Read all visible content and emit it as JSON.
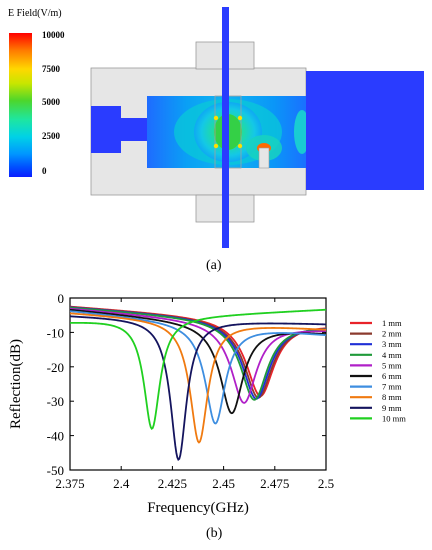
{
  "panel_a": {
    "label": "(a)",
    "colorbar": {
      "title": "E Field(V/m)",
      "ticks": [
        "10000",
        "7500",
        "5000",
        "2500",
        "0"
      ],
      "colors": [
        "#ff0000",
        "#ff7a00",
        "#ffd700",
        "#c8e600",
        "#4cd62c",
        "#1ee6a0",
        "#00d2e6",
        "#0096ff",
        "#0050ff",
        "#0a1eff"
      ]
    }
  },
  "panel_b": {
    "label": "(b)"
  },
  "chart_data": {
    "type": "line",
    "xlabel": "Frequency(GHz)",
    "ylabel": "Reflection(dB)",
    "xlim": [
      2.375,
      2.5
    ],
    "ylim": [
      -50,
      0
    ],
    "xticks": [
      "2.375",
      "2.4",
      "2.425",
      "2.45",
      "2.475",
      "2.5"
    ],
    "yticks": [
      "0",
      "-10",
      "-20",
      "-30",
      "-40",
      "-50"
    ],
    "legend_position": "right",
    "series": [
      {
        "name": "1 mm",
        "color": "#e8232a",
        "f0": 2.468,
        "min": -28.5,
        "bw": 0.0165,
        "y_start": -2.3,
        "y_end": -7.5
      },
      {
        "name": "2 mm",
        "color": "#8b3a2e",
        "f0": 2.467,
        "min": -29.0,
        "bw": 0.0165,
        "y_start": -2.4,
        "y_end": -7.7
      },
      {
        "name": "3 mm",
        "color": "#1f2fd6",
        "f0": 2.466,
        "min": -29.3,
        "bw": 0.0162,
        "y_start": -2.5,
        "y_end": -7.9
      },
      {
        "name": "4 mm",
        "color": "#1f9a3a",
        "f0": 2.465,
        "min": -29.6,
        "bw": 0.016,
        "y_start": -2.6,
        "y_end": -8.1
      },
      {
        "name": "5 mm",
        "color": "#b020c8",
        "f0": 2.46,
        "min": -30.5,
        "bw": 0.015,
        "y_start": -2.9,
        "y_end": -9.0
      },
      {
        "name": "6 mm",
        "color": "#111111",
        "f0": 2.454,
        "min": -33.5,
        "bw": 0.0135,
        "y_start": -3.2,
        "y_end": -10.0
      },
      {
        "name": "7 mm",
        "color": "#3e8ee0",
        "f0": 2.446,
        "min": -36.5,
        "bw": 0.0118,
        "y_start": -3.6,
        "y_end": -10.5
      },
      {
        "name": "8 mm",
        "color": "#f07a10",
        "f0": 2.438,
        "min": -42.0,
        "bw": 0.0105,
        "y_start": -4.2,
        "y_end": -9.0
      },
      {
        "name": "9 mm",
        "color": "#14145e",
        "f0": 2.428,
        "min": -47.0,
        "bw": 0.0095,
        "y_start": -5.0,
        "y_end": -7.5
      },
      {
        "name": "10 mm",
        "color": "#20d020",
        "f0": 2.415,
        "min": -38.0,
        "bw": 0.0095,
        "y_start": -6.8,
        "y_end": -3.3
      }
    ]
  }
}
